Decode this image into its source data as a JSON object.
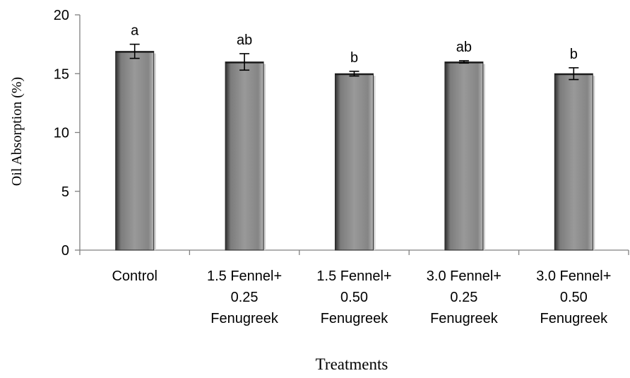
{
  "chart_data": {
    "type": "bar",
    "title": "",
    "xlabel": "Treatments",
    "ylabel": "Oil Absorption (%)",
    "ylim": [
      0,
      20
    ],
    "yticks": [
      0,
      5,
      10,
      15,
      20
    ],
    "grid": false,
    "categories": [
      [
        "Control"
      ],
      [
        "1.5 Fennel+",
        "0.25",
        "Fenugreek"
      ],
      [
        "1.5 Fennel+",
        "0.50",
        "Fenugreek"
      ],
      [
        "3.0 Fennel+",
        "0.25",
        "Fenugreek"
      ],
      [
        "3.0 Fennel+",
        "0.50",
        "Fenugreek"
      ]
    ],
    "values": [
      16.9,
      16.0,
      15.0,
      16.0,
      15.0
    ],
    "errors": [
      0.6,
      0.7,
      0.2,
      0.1,
      0.5
    ],
    "letters": [
      "a",
      "ab",
      "b",
      "ab",
      "b"
    ],
    "colors": {
      "bar": "#8f8f8f",
      "bar_edge": "#2a2a2a",
      "axis": "#808080",
      "text": "#000000"
    }
  }
}
